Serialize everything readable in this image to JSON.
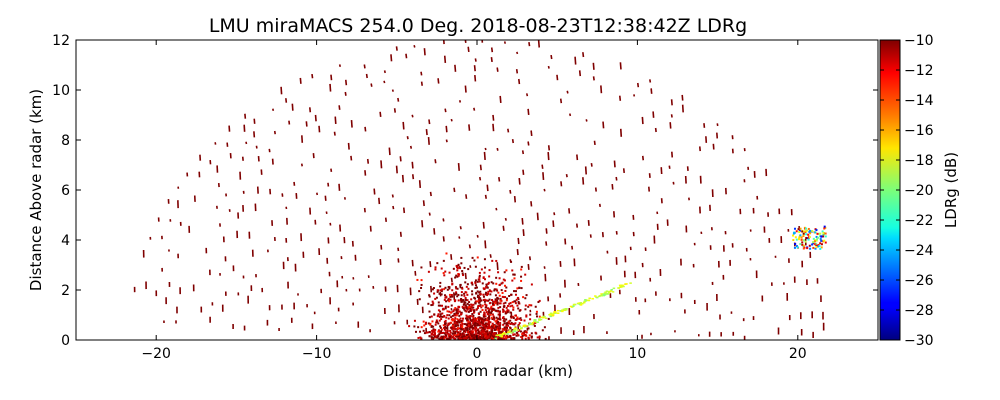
{
  "chart_data": {
    "type": "scatter",
    "subtype": "radar-rhi-ppi-scan",
    "title": "LMU miraMACS 254.0 Deg. 2018-08-23T12:38:42Z  LDRg",
    "xlabel": "Distance from radar (km)",
    "ylabel": "Distance Above radar  (km)",
    "xlim": [
      -25,
      25
    ],
    "ylim": [
      0,
      12
    ],
    "xticks": [
      -20,
      -10,
      0,
      10,
      20
    ],
    "yticks": [
      0,
      2,
      4,
      6,
      8,
      10,
      12
    ],
    "colorbar": {
      "label": "LDRg (dB)",
      "min": -30,
      "max": -10,
      "ticks": [
        -10,
        -12,
        -14,
        -16,
        -18,
        -20,
        -22,
        -24,
        -26,
        -28,
        -30
      ],
      "colormap": "jet"
    },
    "radar_position": [
      0,
      0
    ],
    "features": [
      {
        "name": "sparse clutter arcs",
        "range_km": [
          0,
          22
        ],
        "ldr_db": -10
      },
      {
        "name": "near-radar echo cluster",
        "x_km": [
          -4,
          4
        ],
        "y_km": [
          0,
          3.5
        ],
        "ldr_db": -10
      },
      {
        "name": "low-elevation band",
        "x_km": [
          1,
          9
        ],
        "y_km": [
          0,
          2.2
        ],
        "ldr_db": -17
      },
      {
        "name": "distant echo patch",
        "x_km": [
          19.5,
          21.8
        ],
        "y_km": [
          3.6,
          4.5
        ],
        "ldr_db": -24
      }
    ]
  },
  "colors": {
    "dominant": "#7f0000",
    "accent": "#c80000"
  }
}
